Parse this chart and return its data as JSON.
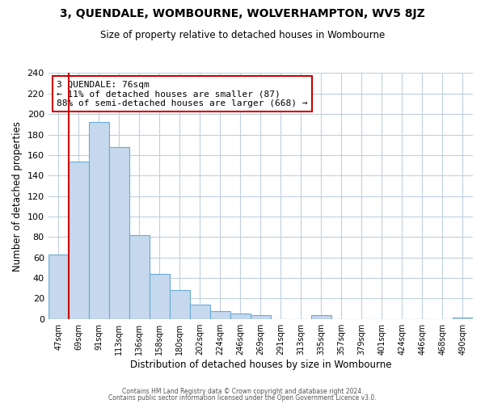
{
  "title": "3, QUENDALE, WOMBOURNE, WOLVERHAMPTON, WV5 8JZ",
  "subtitle": "Size of property relative to detached houses in Wombourne",
  "xlabel": "Distribution of detached houses by size in Wombourne",
  "ylabel": "Number of detached properties",
  "bar_labels": [
    "47sqm",
    "69sqm",
    "91sqm",
    "113sqm",
    "136sqm",
    "158sqm",
    "180sqm",
    "202sqm",
    "224sqm",
    "246sqm",
    "269sqm",
    "291sqm",
    "313sqm",
    "335sqm",
    "357sqm",
    "379sqm",
    "401sqm",
    "424sqm",
    "446sqm",
    "468sqm",
    "490sqm"
  ],
  "bar_values": [
    63,
    154,
    192,
    168,
    82,
    44,
    28,
    14,
    8,
    5,
    4,
    0,
    0,
    4,
    0,
    0,
    0,
    0,
    0,
    0,
    1
  ],
  "bar_color": "#c5d8ed",
  "bar_edge_color": "#6aabd2",
  "property_line_label": "3 QUENDALE: 76sqm",
  "annotation_line1": "← 11% of detached houses are smaller (87)",
  "annotation_line2": "88% of semi-detached houses are larger (668) →",
  "annotation_box_color": "#ffffff",
  "annotation_box_edge_color": "#cc0000",
  "line_color": "#cc0000",
  "ylim": [
    0,
    240
  ],
  "yticks": [
    0,
    20,
    40,
    60,
    80,
    100,
    120,
    140,
    160,
    180,
    200,
    220,
    240
  ],
  "footer1": "Contains HM Land Registry data © Crown copyright and database right 2024.",
  "footer2": "Contains public sector information licensed under the Open Government Licence v3.0.",
  "background_color": "#ffffff",
  "grid_color": "#c0d0e0"
}
